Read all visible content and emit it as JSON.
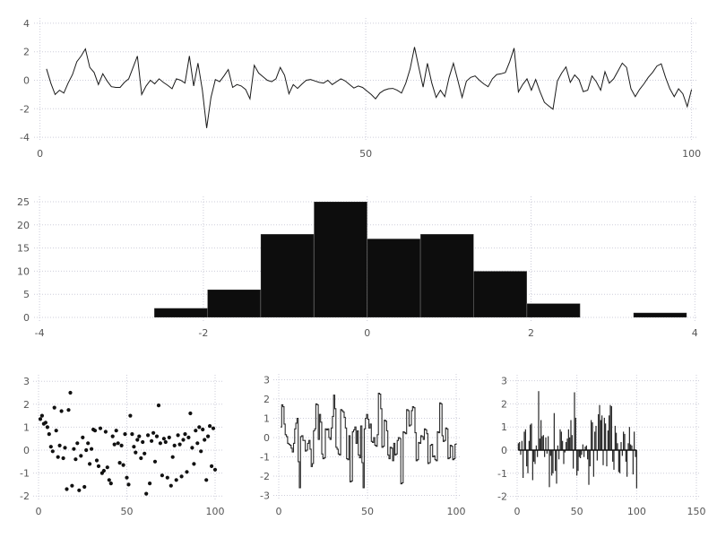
{
  "figure": {
    "background": "#ffffff",
    "text_color": "#555555",
    "grid_color": "#cdcdda",
    "series_color": "#1a1a1a"
  },
  "chart_data": [
    {
      "name": "random-series-line",
      "type": "line",
      "title": "",
      "xlabel": "",
      "ylabel": "",
      "x_ticks": [
        0,
        50,
        100
      ],
      "y_ticks": [
        4,
        2,
        0,
        -2,
        -4
      ],
      "xlim": [
        -1,
        101
      ],
      "ylim": [
        -4,
        4
      ],
      "grid": true,
      "x_start": 1,
      "x_end": 100,
      "values": [
        0.8,
        -0.2,
        -1.0,
        -0.7,
        -0.9,
        -0.2,
        0.4,
        1.3,
        1.7,
        2.2,
        0.9,
        0.55,
        -0.3,
        0.45,
        -0.05,
        -0.45,
        -0.5,
        -0.5,
        -0.15,
        0.1,
        0.9,
        1.7,
        -1.0,
        -0.4,
        0.0,
        -0.25,
        0.1,
        -0.15,
        -0.35,
        -0.6,
        0.1,
        0.0,
        -0.2,
        1.7,
        -0.4,
        1.2,
        -0.7,
        -3.35,
        -1.2,
        0.05,
        -0.1,
        0.3,
        0.75,
        -0.5,
        -0.3,
        -0.4,
        -0.65,
        -1.3,
        1.05,
        0.5,
        0.25,
        0.0,
        -0.1,
        0.1,
        0.9,
        0.35,
        -0.95,
        -0.3,
        -0.57,
        -0.27,
        0.0,
        0.05,
        -0.05,
        -0.15,
        -0.2,
        0.0,
        -0.3,
        -0.1,
        0.1,
        -0.05,
        -0.3,
        -0.55,
        -0.4,
        -0.5,
        -0.75,
        -1.0,
        -1.3,
        -0.9,
        -0.7,
        -0.6,
        -0.57,
        -0.7,
        -0.9,
        -0.2,
        0.8,
        2.33,
        0.9,
        -0.48,
        1.19,
        -0.2,
        -1.2,
        -0.7,
        -1.15,
        0.2,
        1.19,
        0.0,
        -1.2,
        -0.06,
        0.2,
        0.3,
        0.0,
        -0.25,
        -0.45,
        0.1,
        0.4,
        0.45,
        0.55,
        1.3,
        2.25,
        -0.82,
        -0.3,
        0.1,
        -0.7,
        0.05,
        -0.8,
        -1.55,
        -1.8,
        -2.03,
        -0.05,
        0.5,
        0.94,
        -0.15,
        0.37,
        0.05,
        -0.8,
        -0.7,
        0.3,
        -0.1,
        -0.7,
        0.6,
        -0.2,
        0.1,
        0.65,
        1.2,
        0.9,
        -0.6,
        -1.15,
        -0.65,
        -0.25,
        0.2,
        0.55,
        1.0,
        1.15,
        0.2,
        -0.6,
        -1.15,
        -0.6,
        -0.95,
        -1.85,
        -0.65
      ]
    },
    {
      "name": "histogram",
      "type": "bar",
      "title": "",
      "xlabel": "",
      "ylabel": "",
      "x_ticks": [
        -4,
        -2,
        0,
        2,
        4
      ],
      "y_ticks": [
        0,
        5,
        10,
        15,
        20,
        25
      ],
      "xlim": [
        -4,
        4
      ],
      "ylim": [
        0,
        25
      ],
      "grid": true,
      "bin_start": -2.6,
      "bin_width": 0.65,
      "counts": [
        2,
        6,
        18,
        25,
        17,
        18,
        10,
        3,
        0,
        1
      ]
    },
    {
      "name": "scatter",
      "type": "scatter",
      "title": "",
      "xlabel": "",
      "ylabel": "",
      "x_ticks": [
        0,
        50,
        100
      ],
      "y_ticks": [
        3,
        2,
        1,
        0,
        -1,
        -2
      ],
      "xlim": [
        -2,
        104
      ],
      "ylim": [
        -2,
        3
      ],
      "grid": true,
      "x_start": 1,
      "x_end": 100,
      "y": [
        1.35,
        1.5,
        1.15,
        1.2,
        1.0,
        0.7,
        0.15,
        -0.05,
        1.85,
        0.85,
        -0.3,
        0.2,
        1.7,
        -0.35,
        0.1,
        -1.7,
        1.75,
        2.5,
        -1.55,
        0.05,
        -0.4,
        0.3,
        -1.75,
        -0.25,
        0.55,
        -1.6,
        0.0,
        0.3,
        -0.6,
        0.05,
        0.9,
        0.85,
        -0.45,
        -0.7,
        0.95,
        -1.0,
        -0.9,
        0.8,
        -0.75,
        -1.3,
        -1.45,
        0.6,
        0.25,
        0.85,
        0.3,
        -0.55,
        0.2,
        -0.65,
        0.7,
        -1.2,
        -1.5,
        1.5,
        0.7,
        0.15,
        -0.1,
        0.45,
        0.6,
        -0.35,
        0.35,
        -0.15,
        -1.9,
        0.65,
        -1.45,
        0.4,
        0.75,
        -0.5,
        0.6,
        1.95,
        0.3,
        -1.1,
        0.5,
        0.35,
        -1.2,
        0.55,
        -1.55,
        -0.3,
        0.2,
        -1.3,
        0.65,
        0.25,
        -1.15,
        0.45,
        0.7,
        -0.95,
        0.55,
        1.6,
        0.1,
        -0.6,
        0.85,
        0.3,
        1.0,
        -0.05,
        0.9,
        0.45,
        -1.3,
        0.6,
        1.05,
        -0.7,
        0.95,
        -0.85
      ]
    },
    {
      "name": "step-series",
      "type": "line",
      "subtype": "step",
      "title": "",
      "xlabel": "",
      "ylabel": "",
      "x_ticks": [
        0,
        50,
        100
      ],
      "y_ticks": [
        3,
        2,
        1,
        0,
        -1,
        -2,
        -3
      ],
      "xlim": [
        -2,
        104
      ],
      "ylim": [
        -3,
        3
      ],
      "grid": true,
      "x_start": 1,
      "x_end": 100,
      "values": [
        0.55,
        1.7,
        1.6,
        0.7,
        0.15,
        0.05,
        -0.3,
        -0.35,
        -0.4,
        -0.55,
        -0.75,
        -0.3,
        0.45,
        0.75,
        1.0,
        -1.25,
        -2.6,
        0.05,
        0.1,
        -0.15,
        -0.15,
        -0.7,
        -0.65,
        -0.3,
        -0.15,
        -0.6,
        -1.5,
        -1.35,
        0.35,
        0.45,
        1.75,
        1.7,
        -0.1,
        1.2,
        0.8,
        -0.85,
        -1.1,
        -1.05,
        0.45,
        0.4,
        0.45,
        0.0,
        -0.1,
        0.5,
        1.1,
        2.2,
        1.5,
        -0.5,
        -0.6,
        -0.85,
        -0.9,
        1.45,
        1.4,
        1.33,
        1.05,
        0.5,
        -1.1,
        -1.15,
        0.1,
        -2.3,
        -2.25,
        0.3,
        0.4,
        0.55,
        -0.3,
        0.35,
        -0.9,
        -1.05,
        0.6,
        -1.3,
        -2.6,
        0.45,
        1.0,
        1.2,
        0.95,
        0.5,
        0.7,
        -0.2,
        -0.25,
        0.0,
        -0.4,
        -0.45,
        0.15,
        2.3,
        2.25,
        1.5,
        -0.5,
        -0.45,
        0.9,
        0.85,
        0.35,
        -0.9,
        -1.1,
        -0.5,
        -0.55,
        -1.2,
        -0.3,
        -0.9,
        -0.85,
        -0.15,
        0.0,
        -0.05,
        -2.4,
        -2.35,
        0.3,
        0.25,
        0.2,
        1.45,
        1.4,
        0.6,
        0.65,
        1.4,
        1.6,
        1.55,
        0.25,
        -1.2,
        -1.15,
        -0.25,
        -0.3,
        0.1,
        0.05,
        -0.1,
        0.45,
        0.4,
        0.2,
        -1.35,
        -1.3,
        -0.4,
        -0.35,
        -1.0,
        -0.95,
        -1.15,
        -1.2,
        0.3,
        0.25,
        1.8,
        1.75,
        0.1,
        -0.2,
        -0.15,
        0.5,
        0.45,
        -1.1,
        -1.05,
        -0.4,
        -0.45,
        -1.15,
        -1.1,
        -0.35,
        -0.3
      ]
    },
    {
      "name": "stem-bars",
      "type": "bar",
      "subtype": "stem",
      "title": "",
      "xlabel": "",
      "ylabel": "",
      "x_ticks": [
        0,
        50,
        100,
        150
      ],
      "y_ticks": [
        3,
        2,
        1,
        0,
        -1,
        -2
      ],
      "xlim": [
        -7,
        157
      ],
      "ylim": [
        -2,
        3
      ],
      "grid": true,
      "x_start": 1,
      "x_end": 100,
      "values": [
        0.3,
        0.35,
        -0.2,
        0.4,
        -1.2,
        0.8,
        0.9,
        -0.7,
        -1.0,
        0.4,
        1.1,
        1.15,
        -1.3,
        -0.5,
        -0.6,
        0.2,
        -0.3,
        2.55,
        0.5,
        1.3,
        0.6,
        0.65,
        -0.3,
        0.55,
        -0.15,
        0.6,
        -1.6,
        -0.25,
        -1.1,
        -1.0,
        1.6,
        -0.9,
        -1.45,
        0.2,
        -0.4,
        0.9,
        0.8,
        0.4,
        -0.6,
        -0.1,
        0.35,
        0.5,
        0.9,
        0.55,
        1.3,
        0.65,
        -0.8,
        2.5,
        1.4,
        -1.1,
        -0.9,
        -0.3,
        -0.35,
        -0.2,
        0.25,
        -0.3,
        0.15,
        0.2,
        -0.4,
        -1.5,
        -0.7,
        1.3,
        1.2,
        -1.15,
        0.8,
        1.05,
        -0.45,
        1.55,
        1.95,
        1.3,
        1.5,
        -0.65,
        1.4,
        1.15,
        -0.7,
        0.85,
        1.5,
        1.95,
        1.9,
        -0.5,
        -0.85,
        1.05,
        0.75,
        0.3,
        -0.95,
        -1.0,
        0.35,
        -0.25,
        0.8,
        0.7,
        -0.5,
        -1.15,
        0.3,
        1.0,
        0.25,
        0.2,
        -1.05,
        0.8,
        -0.3,
        -1.65
      ]
    }
  ]
}
